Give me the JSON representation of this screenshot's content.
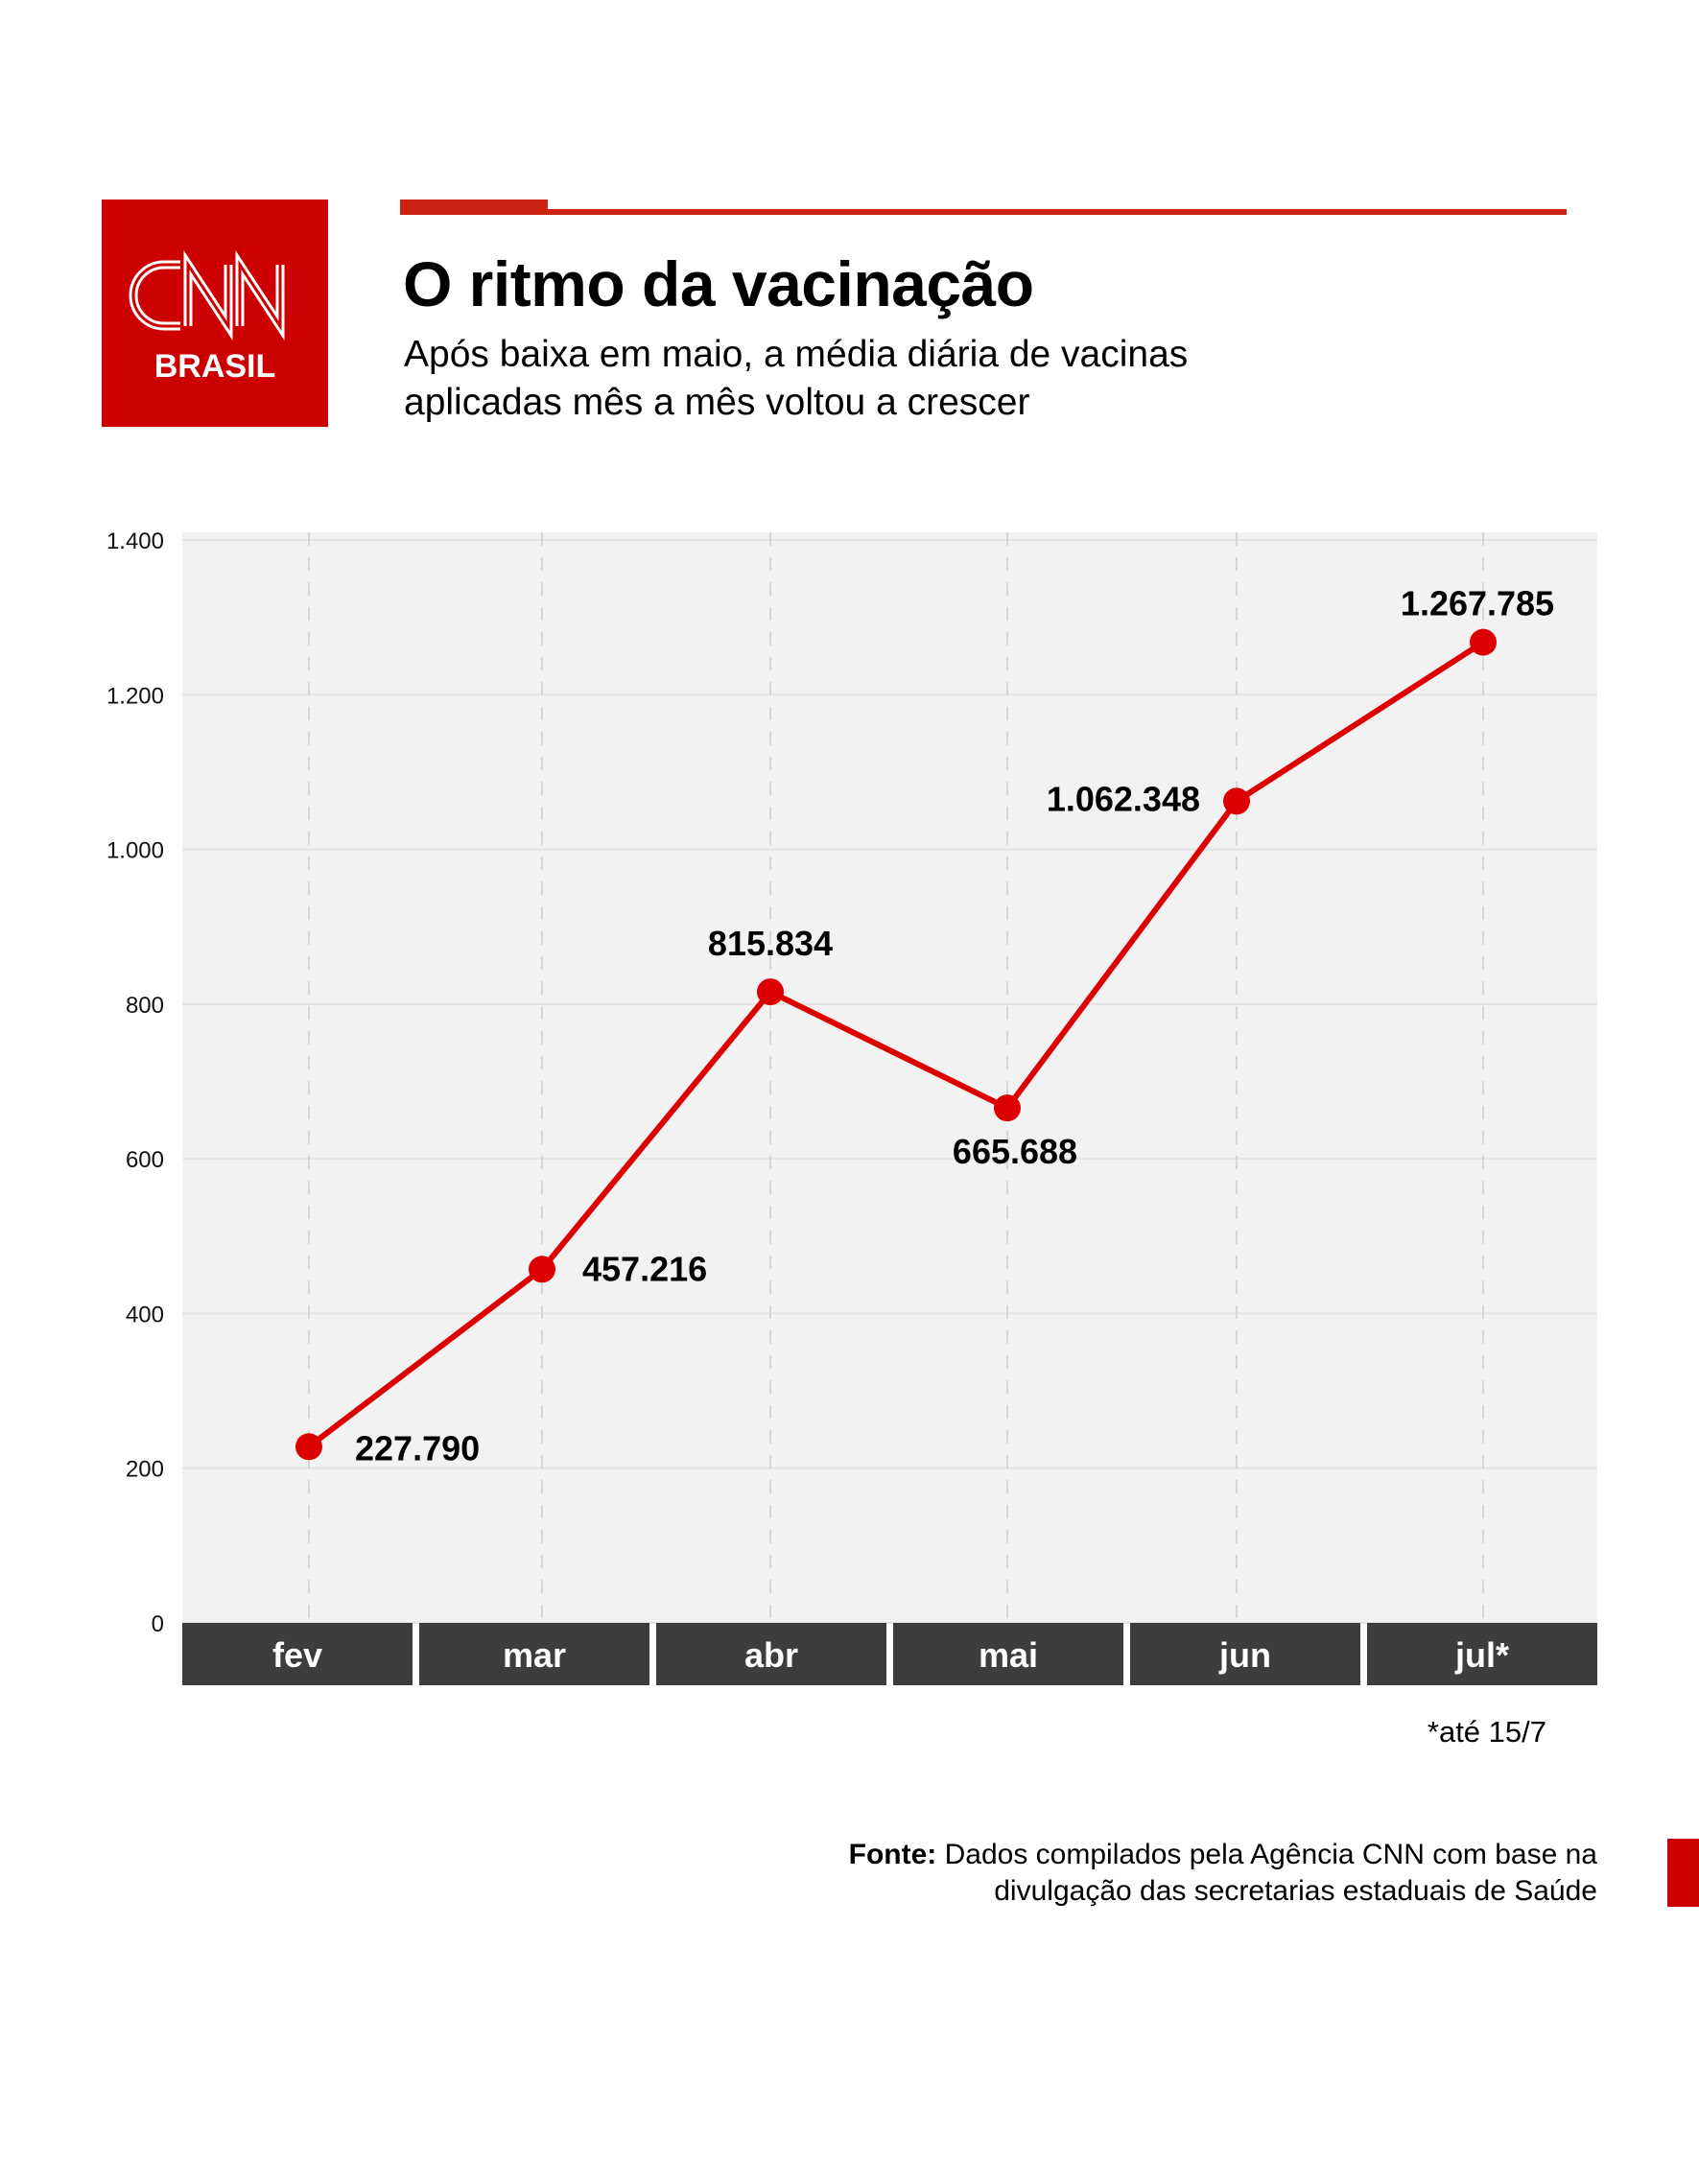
{
  "logo": {
    "brand": "CNN",
    "sub": "BRASIL",
    "color": "#cc0000"
  },
  "header": {
    "title": "O ritmo da vacinação",
    "subtitle_lines": [
      "Após baixa em maio, a média diária de vacinas",
      "aplicadas mês a mês voltou a crescer"
    ]
  },
  "chart_data": {
    "type": "line",
    "categories": [
      "fev",
      "mar",
      "abr",
      "mai",
      "jun",
      "jul*"
    ],
    "values": [
      227.79,
      457.216,
      815.834,
      665.688,
      1062.348,
      1267.785
    ],
    "data_labels": [
      "227.790",
      "457.216",
      "815.834",
      "665.688",
      "1.062.348",
      "1.267.785"
    ],
    "y_ticks": [
      0,
      200,
      400,
      600,
      800,
      1000,
      1200,
      1400
    ],
    "y_tick_labels": [
      "0",
      "200",
      "400",
      "600",
      "800",
      "1.000",
      "1.200",
      "1.400"
    ],
    "ylim": [
      0,
      1400
    ],
    "grid": true,
    "line_color": "#dd0000",
    "background_color": "#f2f2f2",
    "category_bar_color": "#3d3d3d"
  },
  "footnote": "*até 15/7",
  "source": {
    "label": "Fonte:",
    "text": " Dados compilados pela Agência CNN com base na divulgação das secretarias estaduais de Saúde"
  }
}
